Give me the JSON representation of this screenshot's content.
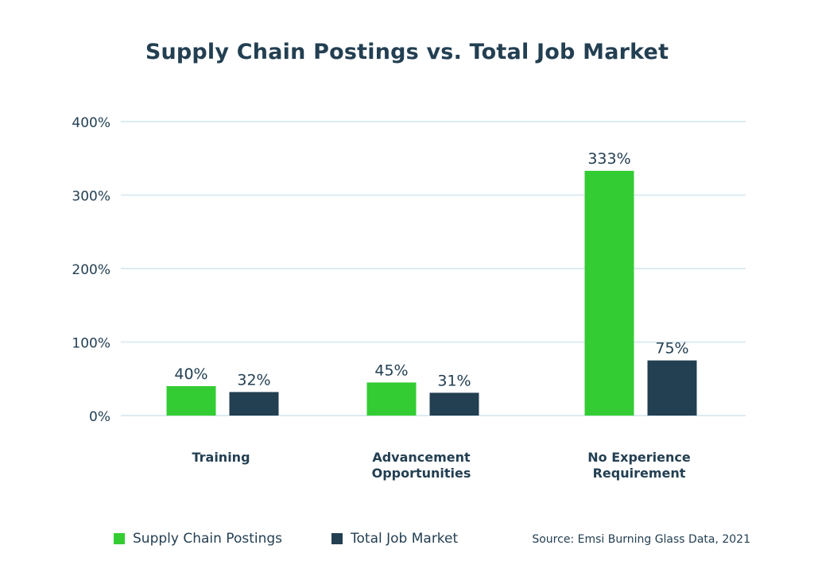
{
  "chart_data": {
    "type": "bar",
    "title": "Supply Chain Postings vs. Total Job Market",
    "categories": [
      [
        "Training"
      ],
      [
        "Advancement",
        "Opportunities"
      ],
      [
        "No Experience",
        "Requirement"
      ]
    ],
    "series": [
      {
        "name": "Supply Chain Postings",
        "color": "#33cc33",
        "values": [
          40,
          45,
          333
        ],
        "labels": [
          "40%",
          "45%",
          "333%"
        ]
      },
      {
        "name": "Total Job Market",
        "color": "#233f52",
        "values": [
          32,
          31,
          75
        ],
        "labels": [
          "32%",
          "31%",
          "75%"
        ]
      }
    ],
    "yticks": [
      "0%",
      "100%",
      "200%",
      "300%",
      "400%"
    ],
    "ylim": [
      0,
      400
    ],
    "grid": true,
    "legend_position": "bottom-left",
    "source": "Source: Emsi Burning Glass Data, 2021"
  }
}
